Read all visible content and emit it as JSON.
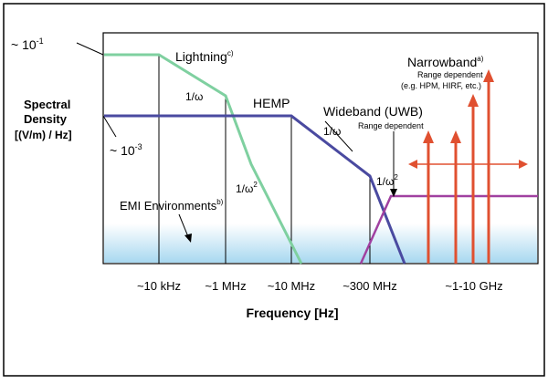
{
  "labels": {
    "y_top_base": "~ 10",
    "y_top_exp": "-1",
    "y_bottom_base": "~ 10",
    "y_bottom_exp": "-3",
    "y_axis_line1": "Spectral",
    "y_axis_line2": "Density",
    "y_axis_line3": "[(V/m) / Hz]",
    "lightning": "Lightning",
    "lightning_sup": "c)",
    "hemp": "HEMP",
    "slope_lightning_1": "1/ω",
    "slope_lightning_2_base": "1/ω",
    "slope_lightning_2_exp": "2",
    "slope_hemp": "1/ω",
    "slope_uwb_base": "1/ω",
    "slope_uwb_exp": "2",
    "wideband": "Wideband (UWB)",
    "wideband_sub": "Range dependent",
    "narrowband": "Narrowband",
    "narrowband_sup": "a)",
    "narrowband_sub1": "Range dependent",
    "narrowband_sub2": "(e.g. HPM, HIRF, etc.)",
    "emi": "EMI Environments",
    "emi_sup": "b)",
    "x_axis_title": "Frequency [Hz]"
  },
  "x_ticks": [
    "~10 kHz",
    "~1 MHz",
    "~10 MHz",
    "~300 MHz",
    "~1-10 GHz"
  ],
  "colors": {
    "lightning": "#7fd0a0",
    "hemp": "#4a4aa0",
    "uwb": "#a040a0",
    "narrowband": "#e05030",
    "emi_band": "#a8d8f0"
  }
}
